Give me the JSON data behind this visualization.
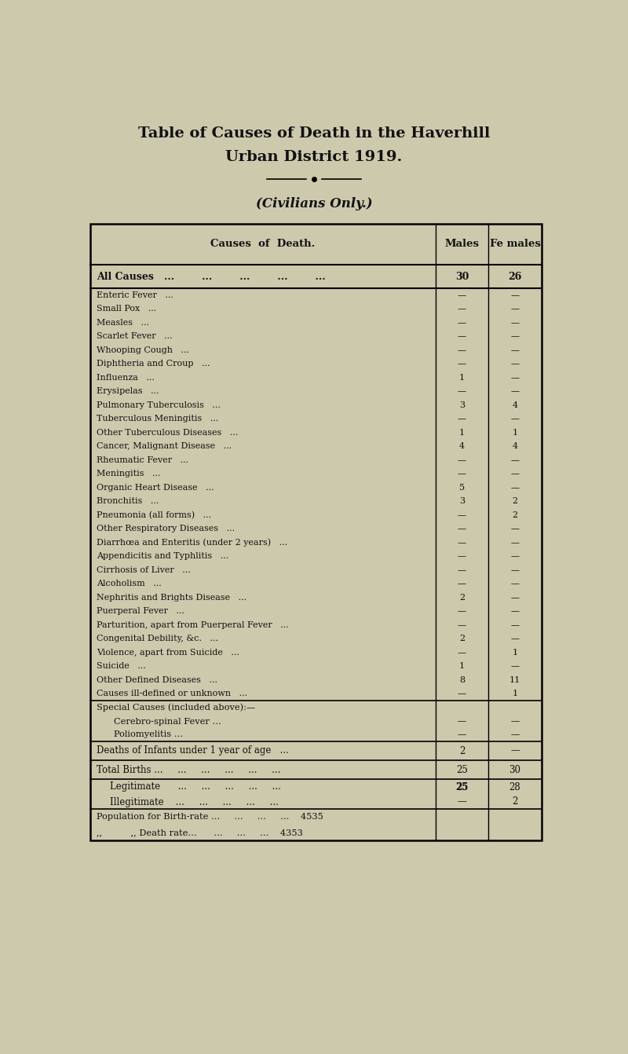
{
  "title_line1": "Table of Causes of Death in the Haverhill",
  "title_line2": "Urban District 1919.",
  "subtitle": "(Civilians Only.)",
  "bg_color": "#cdc9ad",
  "text_color": "#111111",
  "header_col1": "Causes of Death.",
  "header_col2": "Males",
  "header_col3": "Fe males",
  "all_causes": {
    "cause": "All Causes",
    "males": "30",
    "females": "26"
  },
  "main_rows": [
    {
      "cause": "Enteric Fever",
      "males": "—",
      "females": "—"
    },
    {
      "cause": "Small Pox",
      "males": "—",
      "females": "—"
    },
    {
      "cause": "Measles",
      "males": "—",
      "females": "—"
    },
    {
      "cause": "Scarlet Fever",
      "males": "—",
      "females": "—"
    },
    {
      "cause": "Whooping Cough",
      "males": "—",
      "females": "—"
    },
    {
      "cause": "Diphtheria and Croup",
      "males": "—",
      "females": "—"
    },
    {
      "cause": "Influenza",
      "males": "1",
      "females": "—"
    },
    {
      "cause": "Erysipelas",
      "males": "—",
      "females": "—"
    },
    {
      "cause": "Pulmonary Tuberculosis",
      "males": "3",
      "females": "4"
    },
    {
      "cause": "Tuberculous Meningitis",
      "males": "—",
      "females": "—"
    },
    {
      "cause": "Other Tuberculous Diseases",
      "males": "1",
      "females": "1"
    },
    {
      "cause": "Cancer, Malignant Disease",
      "males": "4",
      "females": "4"
    },
    {
      "cause": "Rheumatic Fever",
      "males": "—",
      "females": "—"
    },
    {
      "cause": "Meningitis",
      "males": "—",
      "females": "—"
    },
    {
      "cause": "Organic Heart Disease",
      "males": "5",
      "females": "—"
    },
    {
      "cause": "Bronchitis",
      "males": "3",
      "females": "2"
    },
    {
      "cause": "Pneumonia (all forms)",
      "males": "—",
      "females": "2"
    },
    {
      "cause": "Other Respiratory Diseases",
      "males": "—",
      "females": "—"
    },
    {
      "cause": "Diarrhœa and Enteritis (under 2 years)",
      "males": "—",
      "females": "—"
    },
    {
      "cause": "Appendicitis and Typhlitis",
      "males": "—",
      "females": "—"
    },
    {
      "cause": "Cirrhosis of Liver",
      "males": "—",
      "females": "—"
    },
    {
      "cause": "Alcoholism",
      "males": "—",
      "females": "—"
    },
    {
      "cause": "Nephritis and Brights Disease",
      "males": "2",
      "females": "—"
    },
    {
      "cause": "Puerperal Fever",
      "males": "—",
      "females": "—"
    },
    {
      "cause": "Parturition, apart from Puerperal Fever",
      "males": "—",
      "females": "—"
    },
    {
      "cause": "Congenital Debility, &c.",
      "males": "2",
      "females": "—"
    },
    {
      "cause": "Violence, apart from Suicide",
      "males": "—",
      "females": "1"
    },
    {
      "cause": "Suicide",
      "males": "1",
      "females": "—"
    },
    {
      "cause": "Other Defined Diseases",
      "males": "8",
      "females": "11"
    },
    {
      "cause": "Causes ill-defined or unknown",
      "males": "—",
      "females": "1"
    }
  ],
  "special_header": "Special Causes (included above):—",
  "special_rows": [
    {
      "cause": "Cerebro-spinal Fever ...",
      "males": "—",
      "females": "—"
    },
    {
      "cause": "Poliomyelitis ...",
      "males": "—",
      "females": "—"
    }
  ],
  "infant_row": {
    "cause": "Deaths of Infants under 1 year of age",
    "males": "2",
    "females": "—"
  },
  "births_row": {
    "cause": "Total Births ...",
    "males": "25",
    "females": "30"
  },
  "legit_row": {
    "cause": "Legitimate",
    "males": "25",
    "females": "28"
  },
  "illegit_row": {
    "cause": "Illegitimate",
    "males": "—",
    "females": "2"
  },
  "pop_row1": "Population for Birth-rate ...     ...     ...     ...  4535",
  "pop_row2": ",,           ,, Death rate...     ...     ...     ...  4353",
  "dots_main": "... ... ... ... ...",
  "dots_short": "..."
}
